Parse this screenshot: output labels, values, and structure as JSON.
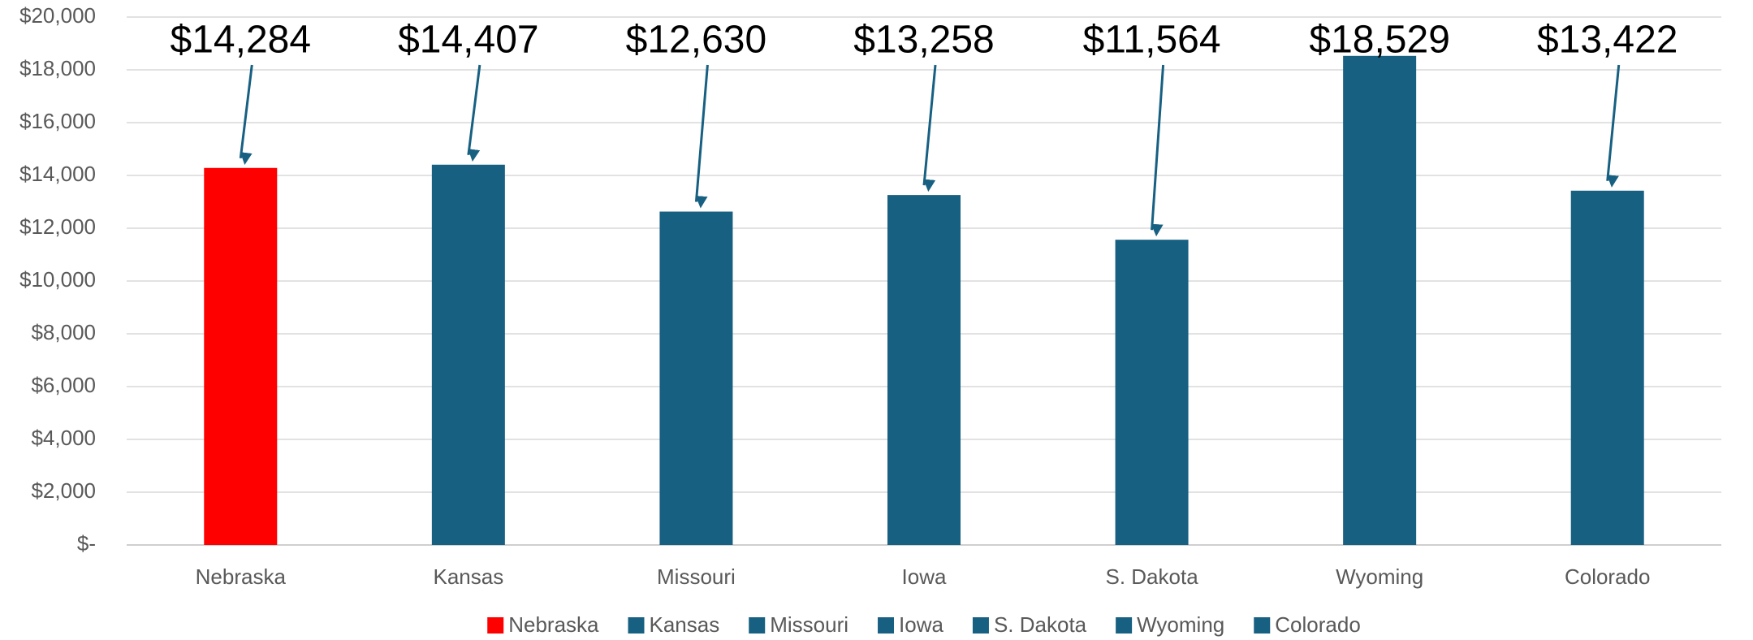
{
  "chart_data": {
    "type": "bar",
    "categories": [
      "Nebraska",
      "Kansas",
      "Missouri",
      "Iowa",
      "S. Dakota",
      "Wyoming",
      "Colorado"
    ],
    "values": [
      14284,
      14407,
      12630,
      13258,
      11564,
      18529,
      13422
    ],
    "value_labels": [
      "$14,284",
      "$14,407",
      "$12,630",
      "$13,258",
      "$11,564",
      "$18,529",
      "$13,422"
    ],
    "colors": [
      "#ff0000",
      "#176082",
      "#176082",
      "#176082",
      "#176082",
      "#176082",
      "#176082"
    ],
    "ylim": [
      0,
      20000
    ],
    "yticks": [
      {
        "value": 0,
        "label": "$-"
      },
      {
        "value": 2000,
        "label": "$2,000"
      },
      {
        "value": 4000,
        "label": "$4,000"
      },
      {
        "value": 6000,
        "label": "$6,000"
      },
      {
        "value": 8000,
        "label": "$8,000"
      },
      {
        "value": 10000,
        "label": "$10,000"
      },
      {
        "value": 12000,
        "label": "$12,000"
      },
      {
        "value": 14000,
        "label": "$14,000"
      },
      {
        "value": 16000,
        "label": "$16,000"
      },
      {
        "value": 18000,
        "label": "$18,000"
      },
      {
        "value": 20000,
        "label": "$20,000"
      }
    ],
    "grid": true
  }
}
